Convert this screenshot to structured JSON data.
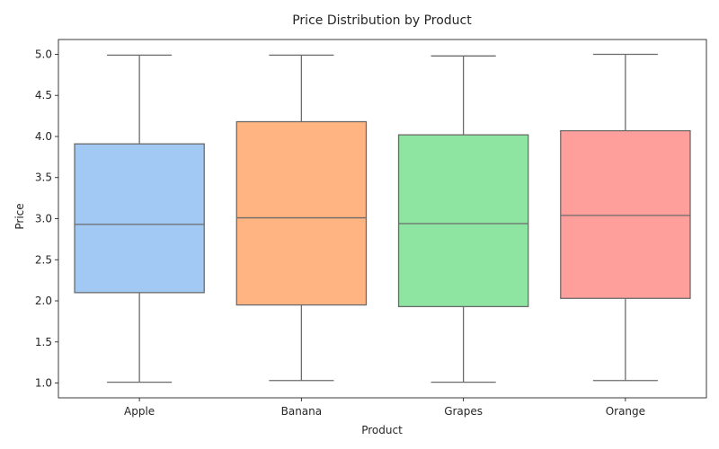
{
  "chart_data": {
    "type": "box",
    "title": "Price Distribution by Product",
    "xlabel": "Product",
    "ylabel": "Price",
    "ylim": [
      0.82,
      5.18
    ],
    "yticks": [
      "1.0",
      "1.5",
      "2.0",
      "2.5",
      "3.0",
      "3.5",
      "4.0",
      "4.5",
      "5.0"
    ],
    "grid": false,
    "categories": [
      "Apple",
      "Banana",
      "Grapes",
      "Orange"
    ],
    "boxes": [
      {
        "category": "Apple",
        "whisker_low": 1.01,
        "q1": 2.1,
        "median": 2.93,
        "q3": 3.91,
        "whisker_high": 4.99,
        "color": "#a1c9f4"
      },
      {
        "category": "Banana",
        "whisker_low": 1.03,
        "q1": 1.95,
        "median": 3.01,
        "q3": 4.18,
        "whisker_high": 4.99,
        "color": "#ffb482"
      },
      {
        "category": "Grapes",
        "whisker_low": 1.01,
        "q1": 1.93,
        "median": 2.94,
        "q3": 4.02,
        "whisker_high": 4.98,
        "color": "#8de5a1"
      },
      {
        "category": "Orange",
        "whisker_low": 1.03,
        "q1": 2.03,
        "median": 3.04,
        "q3": 4.07,
        "whisker_high": 5.0,
        "color": "#ff9f9b"
      }
    ]
  }
}
